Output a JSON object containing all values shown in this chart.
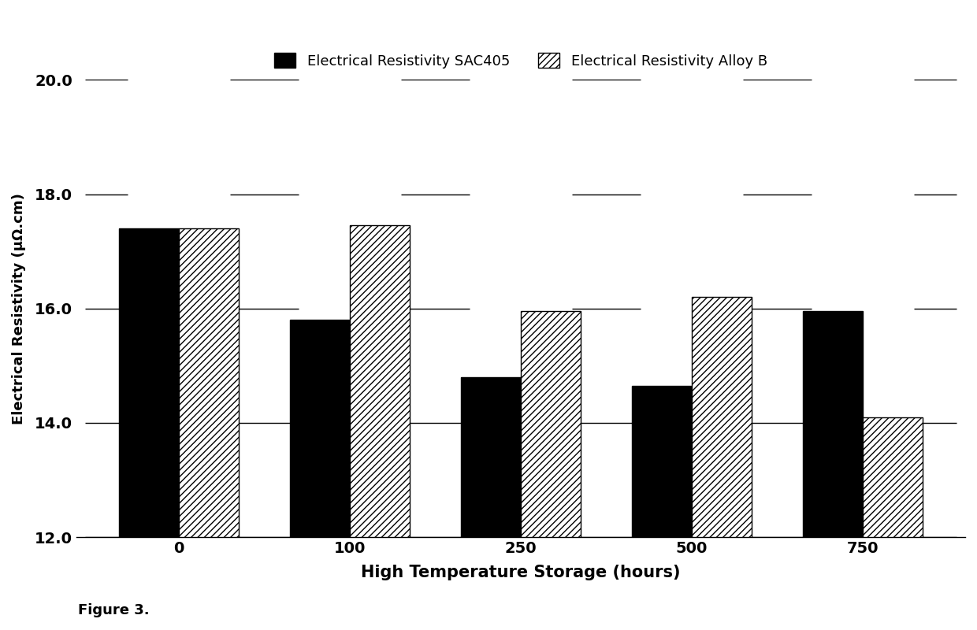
{
  "categories": [
    "0",
    "100",
    "250",
    "500",
    "750"
  ],
  "sac405_values": [
    17.4,
    15.8,
    14.8,
    14.65,
    15.95
  ],
  "alloyB_values": [
    17.4,
    17.45,
    15.95,
    16.2,
    14.1
  ],
  "xlabel": "High Temperature Storage (hours)",
  "ylabel": "Electrical Resistivity (μΩ.cm)",
  "legend_sac405": "Electrical Resistivity SAC405",
  "legend_alloyB": "Electrical Resistivity Alloy B",
  "ylim": [
    12.0,
    20.0
  ],
  "yticks": [
    12.0,
    14.0,
    16.0,
    18.0,
    20.0
  ],
  "color_sac405": "#000000",
  "color_alloyB": "#ffffff",
  "figure_caption": "Figure 3.",
  "bar_width": 0.35,
  "background_color": "#ffffff"
}
